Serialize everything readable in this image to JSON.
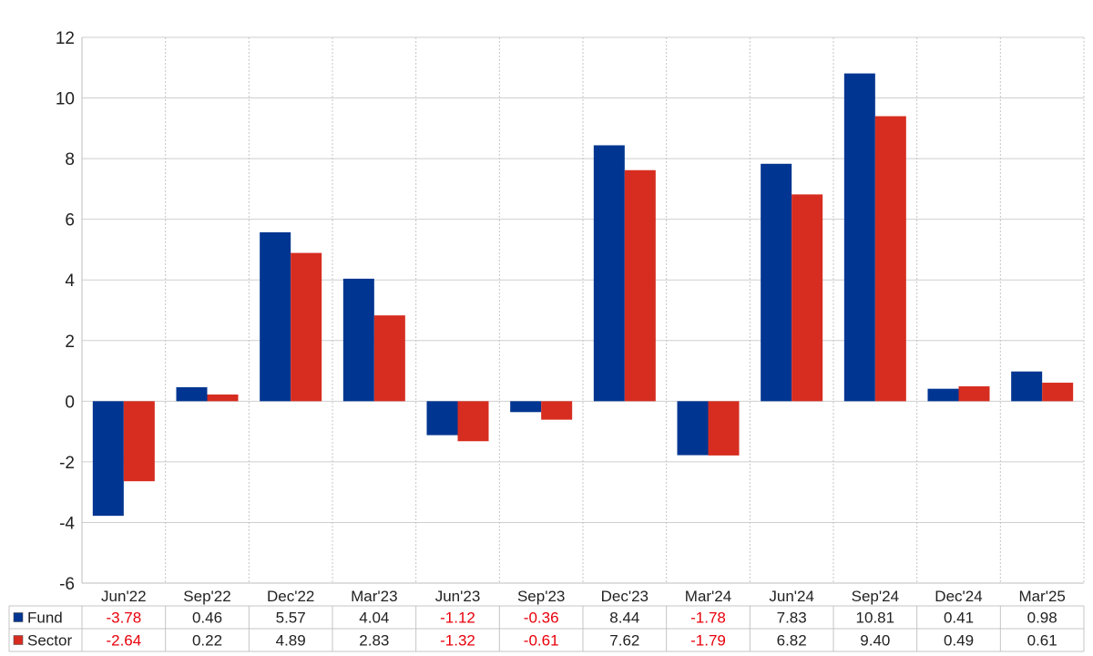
{
  "chart_data": {
    "type": "bar",
    "categories": [
      "Jun'22",
      "Sep'22",
      "Dec'22",
      "Mar'23",
      "Jun'23",
      "Sep'23",
      "Dec'23",
      "Mar'24",
      "Jun'24",
      "Sep'24",
      "Dec'24",
      "Mar'25"
    ],
    "series": [
      {
        "name": "Fund",
        "color": "#003591",
        "values": [
          -3.78,
          0.46,
          5.57,
          4.04,
          -1.12,
          -0.36,
          8.44,
          -1.78,
          7.83,
          10.81,
          0.41,
          0.98
        ],
        "labels": [
          "-3.78",
          "0.46",
          "5.57",
          "4.04",
          "-1.12",
          "-0.36",
          "8.44",
          "-1.78",
          "7.83",
          "10.81",
          "0.41",
          "0.98"
        ]
      },
      {
        "name": "Sector",
        "color": "#d62d20",
        "values": [
          -2.64,
          0.22,
          4.89,
          2.83,
          -1.32,
          -0.61,
          7.62,
          -1.79,
          6.82,
          9.4,
          0.49,
          0.61
        ],
        "labels": [
          "-2.64",
          "0.22",
          "4.89",
          "2.83",
          "-1.32",
          "-0.61",
          "7.62",
          "-1.79",
          "6.82",
          "9.40",
          "0.49",
          "0.61"
        ]
      }
    ],
    "title": "",
    "xlabel": "",
    "ylabel": "",
    "ylim": [
      -6,
      12
    ],
    "yticks": [
      "-6",
      "-4",
      "-2",
      "0",
      "2",
      "4",
      "6",
      "8",
      "10",
      "12"
    ],
    "grid": true,
    "legend": "data-table-left",
    "negative_value_color": "#e8000b",
    "positive_value_color": "#222222"
  }
}
